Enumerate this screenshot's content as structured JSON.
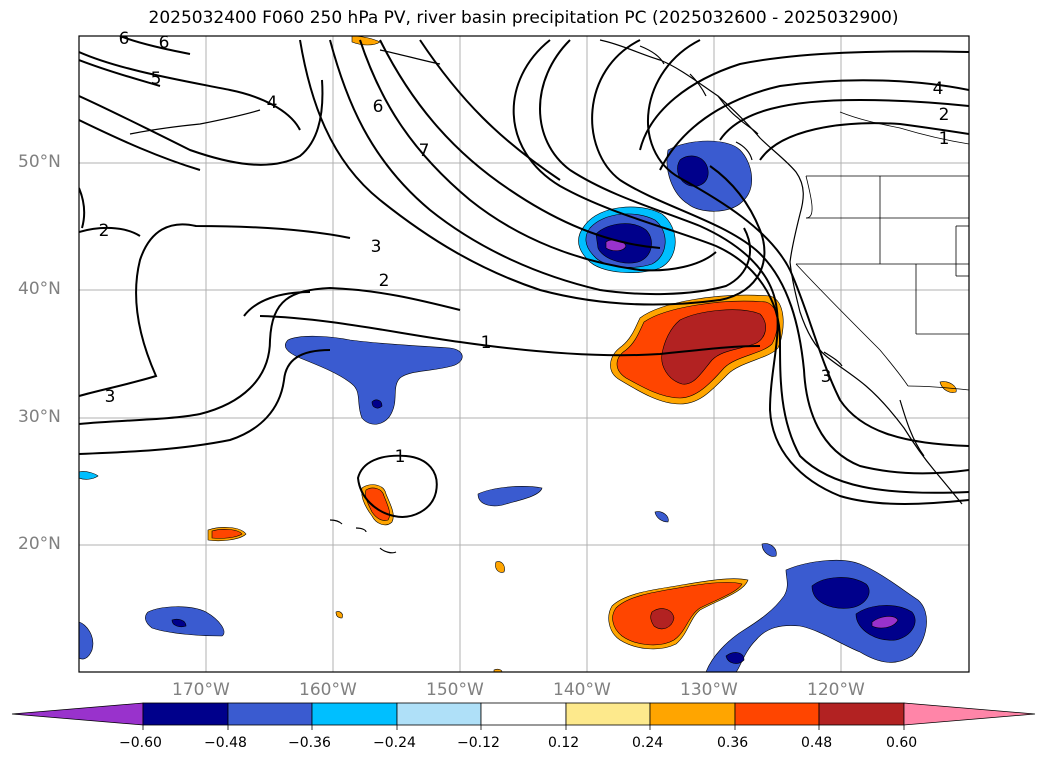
{
  "title": "2025032400 F060 250 hPa PV, river basin precipitation PC (2025032600 - 2025032900)",
  "lat_labels": [
    "50°N",
    "40°N",
    "30°N",
    "20°N"
  ],
  "lon_labels": [
    "170°W",
    "160°W",
    "150°W",
    "140°W",
    "130°W",
    "120°W"
  ],
  "contour_labels": [
    "6",
    "6",
    "5",
    "4",
    "6",
    "7",
    "4",
    "2",
    "1",
    "2",
    "3",
    "2",
    "1",
    "3",
    "1",
    "3"
  ],
  "colorbar": {
    "ticks": [
      "−0.60",
      "−0.48",
      "−0.36",
      "−0.24",
      "−0.12",
      "0.12",
      "0.24",
      "0.36",
      "0.48",
      "0.60"
    ],
    "colors": [
      "#9932cc",
      "#00008b",
      "#3a5bd0",
      "#00bfff",
      "#afe0f8",
      "#ffffff",
      "#fde98c",
      "#ffa500",
      "#ff4500",
      "#b22222",
      "#ff85a8"
    ]
  },
  "legend_colors": {
    "neg_max": "#9932cc",
    "neg_high": "#00008b",
    "neg_mid": "#3a5bd0",
    "neg_low": "#00bfff",
    "pos_low": "#fde98c",
    "pos_mid": "#ffa500",
    "pos_high": "#ff4500",
    "pos_max": "#b22222"
  }
}
